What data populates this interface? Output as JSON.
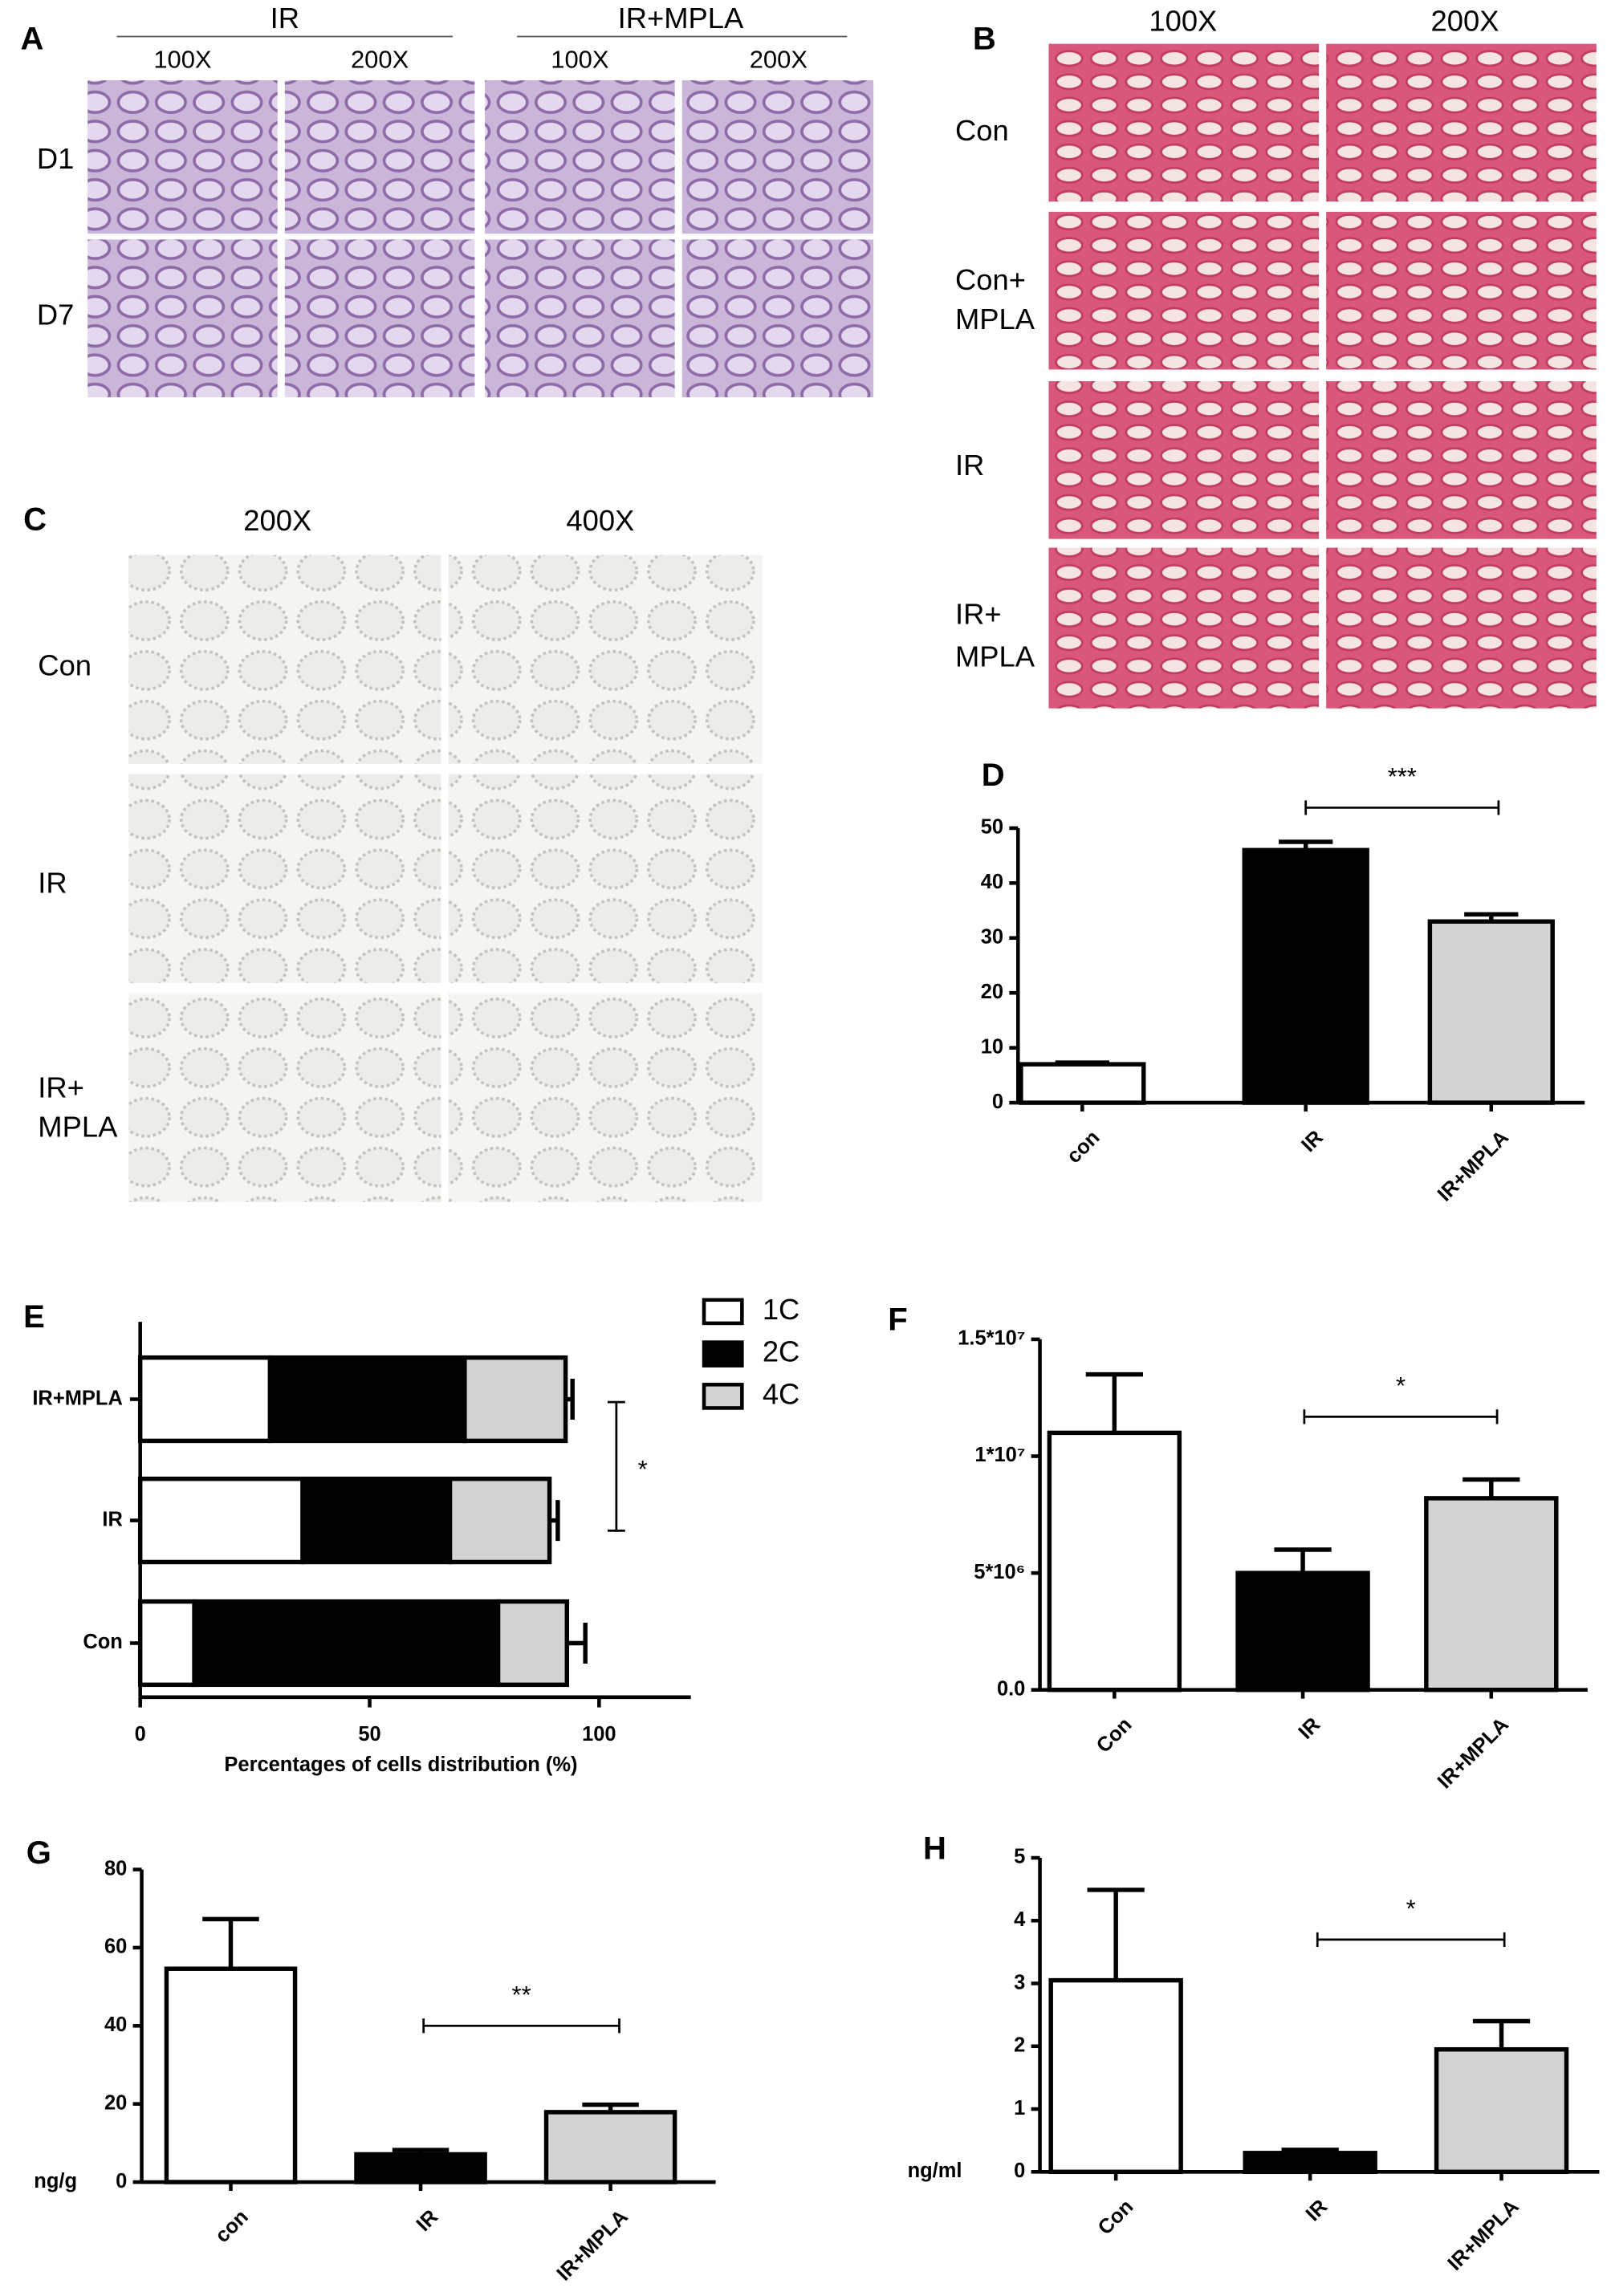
{
  "panels": [
    {
      "panel": "A",
      "groups": [
        "IR",
        "IR+MPLA"
      ],
      "mags": [
        "100X",
        "200X",
        "100X",
        "200X"
      ],
      "rows": [
        "D1",
        "D7"
      ]
    },
    {
      "panel": "B",
      "mags": [
        "100X",
        "200X"
      ],
      "rows": [
        [
          "Con"
        ],
        [
          "Con+",
          "MPLA"
        ],
        [
          "IR"
        ],
        [
          "IR+",
          "MPLA"
        ]
      ]
    },
    {
      "panel": "C",
      "mags": [
        "200X",
        "400X"
      ],
      "rows": [
        [
          "Con"
        ],
        [
          "IR"
        ],
        [
          "IR+",
          "MPLA"
        ]
      ]
    }
  ],
  "chart_data": [
    {
      "type": "bar",
      "panel": "D",
      "categories": [
        "con",
        "IR",
        "IR+MPLA"
      ],
      "values": [
        7,
        46,
        33
      ],
      "errors": [
        0.3,
        1.5,
        1.3
      ],
      "colors": [
        "#ffffff",
        "#000000",
        "#d3d3d3"
      ],
      "ylim": [
        0,
        50
      ],
      "yticks": [
        0,
        10,
        20,
        30,
        40,
        50
      ],
      "annotation": "***"
    },
    {
      "type": "hbar-stacked",
      "panel": "E",
      "categories": [
        "IR+MPLA",
        "IR",
        "Con"
      ],
      "series": [
        {
          "name": "1C",
          "color": "#ffffff",
          "values": [
            28.3,
            35.4,
            11.8
          ]
        },
        {
          "name": "2C",
          "color": "#000000",
          "values": [
            42.4,
            32.1,
            66.2
          ],
          "errors": [
            2.2,
            1.5,
            1.5
          ]
        },
        {
          "name": "4C",
          "color": "#d3d3d3",
          "values": [
            22,
            21.7,
            15
          ],
          "errors": [
            1.5,
            1.8,
            4
          ]
        }
      ],
      "xlim": [
        0,
        120
      ],
      "xticks": [
        0,
        50,
        100
      ],
      "xlabel": "Percentages of cells distribution (%)",
      "annotation": "*"
    },
    {
      "type": "bar",
      "panel": "F",
      "categories": [
        "Con",
        "IR",
        "IR+MPLA"
      ],
      "values": [
        11000000,
        5000000,
        8200000
      ],
      "errors": [
        2500000,
        1000000,
        800000
      ],
      "colors": [
        "#ffffff",
        "#000000",
        "#d3d3d3"
      ],
      "ylim": [
        0,
        15000000
      ],
      "yticks": [
        {
          "value": 0,
          "label": "0.0"
        },
        {
          "value": 5000000,
          "label": "5*10⁶"
        },
        {
          "value": 10000000,
          "label": "1*10⁷"
        },
        {
          "value": 15000000,
          "label": "1.5*10⁷"
        }
      ],
      "annotation": "*"
    },
    {
      "type": "bar",
      "panel": "G",
      "categories": [
        "con",
        "IR",
        "IR+MPLA"
      ],
      "values": [
        54.6,
        7.1,
        17.9
      ],
      "errors": [
        12.7,
        1.1,
        1.9
      ],
      "colors": [
        "#ffffff",
        "#000000",
        "#d3d3d3"
      ],
      "ylim": [
        0,
        80
      ],
      "yticks": [
        0,
        20,
        40,
        60,
        80
      ],
      "ylabel": "ng/g",
      "annotation": "**"
    },
    {
      "type": "bar",
      "panel": "H",
      "categories": [
        "Con",
        "IR",
        "IR+MPLA"
      ],
      "values": [
        3.05,
        0.3,
        1.95
      ],
      "errors": [
        1.44,
        0.05,
        0.45
      ],
      "colors": [
        "#ffffff",
        "#000000",
        "#d3d3d3"
      ],
      "ylim": [
        0,
        5
      ],
      "yticks": [
        0,
        1,
        2,
        3,
        4,
        5
      ],
      "ylabel": "ng/ml",
      "annotation": "*"
    }
  ]
}
